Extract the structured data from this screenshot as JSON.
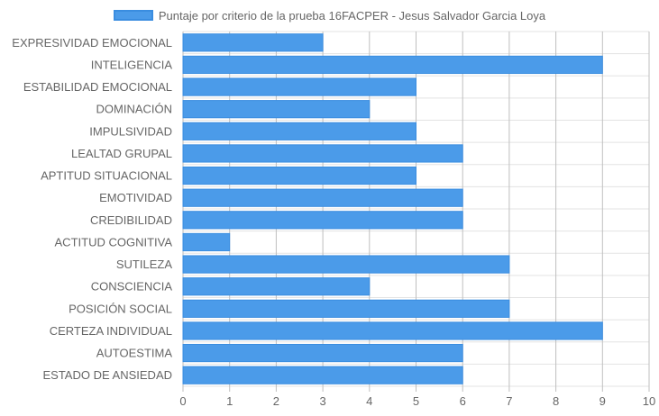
{
  "chart_data": {
    "type": "bar",
    "orientation": "horizontal",
    "categories": [
      "EXPRESIVIDAD EMOCIONAL",
      "INTELIGENCIA",
      "ESTABILIDAD EMOCIONAL",
      "DOMINACIÓN",
      "IMPULSIVIDAD",
      "LEALTAD GRUPAL",
      "APTITUD SITUACIONAL",
      "EMOTIVIDAD",
      "CREDIBILIDAD",
      "ACTITUD COGNITIVA",
      "SUTILEZA",
      "CONSCIENCIA",
      "POSICIÓN SOCIAL",
      "CERTEZA INDIVIDUAL",
      "AUTOESTIMA",
      "ESTADO DE ANSIEDAD"
    ],
    "series": [
      {
        "name": "Puntaje por criterio de la prueba 16FACPER - Jesus Salvador Garcia Loya",
        "values": [
          3,
          9,
          5,
          4,
          5,
          6,
          5,
          6,
          6,
          1,
          7,
          4,
          7,
          9,
          6,
          6
        ]
      }
    ],
    "xlim": [
      0,
      10
    ],
    "x_ticks": [
      "0",
      "1",
      "2",
      "3",
      "4",
      "5",
      "6",
      "7",
      "8",
      "9",
      "10"
    ],
    "grid": true,
    "legend_position": "top-center",
    "colors": {
      "bar_fill": "#4b9be9",
      "bar_border": "#3a8de0",
      "grid": "#e3e3e3",
      "axis_text": "#666666"
    }
  }
}
